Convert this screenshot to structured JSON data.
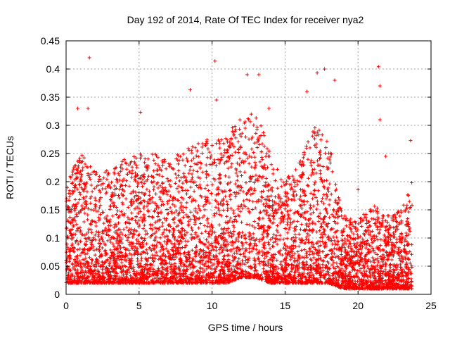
{
  "chart_data": {
    "type": "scatter",
    "title": "Day 192 of 2014, Rate Of TEC Index for receiver nya2",
    "xlabel": "GPS time / hours",
    "ylabel": "ROTI / TECUs",
    "xlim": [
      0,
      25
    ],
    "ylim": [
      0,
      0.45
    ],
    "x_ticks": [
      "0",
      "5",
      "10",
      "15",
      "20",
      "25"
    ],
    "y_ticks": [
      "0",
      "0.05",
      "0.1",
      "0.15",
      "0.2",
      "0.25",
      "0.3",
      "0.35",
      "0.4",
      "0.45"
    ],
    "grid": true,
    "marker": "+",
    "color": "#ff0000",
    "series": [
      {
        "name": "ROTI",
        "description": "dense scatter of ROTI samples across the day; median values 0.05-0.1, spikes listed as notable points",
        "envelope": [
          {
            "x": 0.0,
            "low": 0.02,
            "high": 0.2
          },
          {
            "x": 1.0,
            "low": 0.02,
            "high": 0.25
          },
          {
            "x": 2.0,
            "low": 0.02,
            "high": 0.22
          },
          {
            "x": 3.0,
            "low": 0.02,
            "high": 0.22
          },
          {
            "x": 4.0,
            "low": 0.02,
            "high": 0.24
          },
          {
            "x": 5.0,
            "low": 0.02,
            "high": 0.25
          },
          {
            "x": 6.0,
            "low": 0.02,
            "high": 0.25
          },
          {
            "x": 7.0,
            "low": 0.02,
            "high": 0.24
          },
          {
            "x": 8.0,
            "low": 0.02,
            "high": 0.26
          },
          {
            "x": 9.0,
            "low": 0.02,
            "high": 0.27
          },
          {
            "x": 10.0,
            "low": 0.02,
            "high": 0.28
          },
          {
            "x": 11.0,
            "low": 0.02,
            "high": 0.28
          },
          {
            "x": 12.0,
            "low": 0.03,
            "high": 0.32
          },
          {
            "x": 13.0,
            "low": 0.03,
            "high": 0.33
          },
          {
            "x": 14.0,
            "low": 0.02,
            "high": 0.25
          },
          {
            "x": 15.0,
            "low": 0.02,
            "high": 0.2
          },
          {
            "x": 16.0,
            "low": 0.02,
            "high": 0.24
          },
          {
            "x": 17.0,
            "low": 0.02,
            "high": 0.3
          },
          {
            "x": 18.0,
            "low": 0.02,
            "high": 0.28
          },
          {
            "x": 19.0,
            "low": 0.01,
            "high": 0.14
          },
          {
            "x": 20.0,
            "low": 0.01,
            "high": 0.13
          },
          {
            "x": 21.0,
            "low": 0.01,
            "high": 0.16
          },
          {
            "x": 22.0,
            "low": 0.01,
            "high": 0.14
          },
          {
            "x": 23.0,
            "low": 0.01,
            "high": 0.15
          },
          {
            "x": 23.7,
            "low": 0.01,
            "high": 0.2
          }
        ],
        "notable_points": [
          {
            "x": 1.6,
            "y": 0.42
          },
          {
            "x": 10.2,
            "y": 0.414
          },
          {
            "x": 1.5,
            "y": 0.33
          },
          {
            "x": 0.8,
            "y": 0.33
          },
          {
            "x": 5.1,
            "y": 0.323
          },
          {
            "x": 8.5,
            "y": 0.363
          },
          {
            "x": 12.4,
            "y": 0.39
          },
          {
            "x": 13.2,
            "y": 0.39
          },
          {
            "x": 17.7,
            "y": 0.4
          },
          {
            "x": 17.2,
            "y": 0.393
          },
          {
            "x": 18.4,
            "y": 0.38
          },
          {
            "x": 21.4,
            "y": 0.404
          },
          {
            "x": 21.5,
            "y": 0.37
          },
          {
            "x": 21.5,
            "y": 0.31
          },
          {
            "x": 20.0,
            "y": 0.186
          },
          {
            "x": 21.9,
            "y": 0.245
          },
          {
            "x": 23.6,
            "y": 0.273
          },
          {
            "x": 13.9,
            "y": 0.33
          },
          {
            "x": 10.3,
            "y": 0.345
          },
          {
            "x": 16.5,
            "y": 0.36
          }
        ]
      }
    ]
  }
}
